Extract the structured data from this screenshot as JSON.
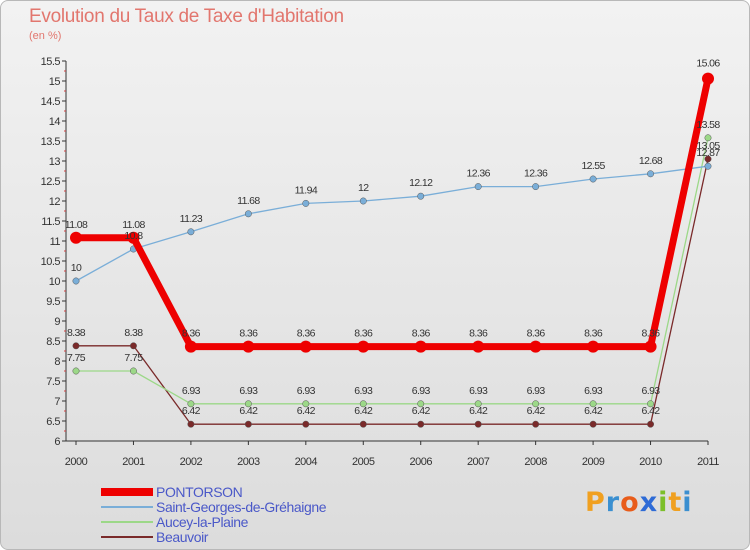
{
  "title": "Evolution du Taux de Taxe d'Habitation",
  "subtitle": "(en %)",
  "logo": {
    "text": "Proxiti",
    "letters": [
      {
        "char": "P",
        "color": "#f0a020"
      },
      {
        "char": "r",
        "color": "#3a8fd0"
      },
      {
        "char": "o",
        "color": "#e85c1a"
      },
      {
        "char": "x",
        "color": "#2e6bd6"
      },
      {
        "char": "i",
        "color": "#7cbf2a"
      },
      {
        "char": "t",
        "color": "#f0a020"
      },
      {
        "char": "i",
        "color": "#3a8fd0"
      }
    ]
  },
  "chart_data": {
    "type": "line",
    "title": "Evolution du Taux de Taxe d'Habitation",
    "ylabel": "(en %)",
    "xlabel": "",
    "x": [
      "2000",
      "2001",
      "2002",
      "2003",
      "2004",
      "2005",
      "2006",
      "2007",
      "2008",
      "2009",
      "2010",
      "2011"
    ],
    "ylim": [
      6,
      15.5
    ],
    "yticks": [
      "6",
      "6.5",
      "7",
      "7.5",
      "8",
      "8.5",
      "9",
      "9.5",
      "10",
      "10.5",
      "11",
      "11.5",
      "12",
      "12.5",
      "13",
      "13.5",
      "14",
      "14.5",
      "15",
      "15.5"
    ],
    "grid": false,
    "legend_position": "bottom-left",
    "series": [
      {
        "name": "PONTORSON",
        "color": "#ee0000",
        "values": [
          11.08,
          11.08,
          8.36,
          8.36,
          8.36,
          8.36,
          8.36,
          8.36,
          8.36,
          8.36,
          8.36,
          15.06
        ],
        "labels": [
          "11.08",
          "11.08",
          "8.36",
          "8.36",
          "8.36",
          "8.36",
          "8.36",
          "8.36",
          "8.36",
          "8.36",
          "8.36",
          "15.06"
        ]
      },
      {
        "name": "Saint-Georges-de-Gréhaigne",
        "color": "#7aaed8",
        "values": [
          10,
          10.8,
          11.23,
          11.68,
          11.94,
          12,
          12.12,
          12.36,
          12.36,
          12.55,
          12.68,
          12.87
        ],
        "labels": [
          "10",
          "10.8",
          "11.23",
          "11.68",
          "11.94",
          "12",
          "12.12",
          "12.36",
          "12.36",
          "12.55",
          "12.68",
          "12.87"
        ]
      },
      {
        "name": "Aucey-la-Plaine",
        "color": "#9cd888",
        "values": [
          7.75,
          7.75,
          6.93,
          6.93,
          6.93,
          6.93,
          6.93,
          6.93,
          6.93,
          6.93,
          6.93,
          13.58
        ],
        "labels": [
          "7.75",
          "7.75",
          "6.93",
          "6.93",
          "6.93",
          "6.93",
          "6.93",
          "6.93",
          "6.93",
          "6.93",
          "6.93",
          "13.58"
        ]
      },
      {
        "name": "Beauvoir",
        "color": "#7a2a2a",
        "values": [
          8.38,
          8.38,
          6.42,
          6.42,
          6.42,
          6.42,
          6.42,
          6.42,
          6.42,
          6.42,
          6.42,
          13.05
        ],
        "labels": [
          "8.38",
          "8.38",
          "6.42",
          "6.42",
          "6.42",
          "6.42",
          "6.42",
          "6.42",
          "6.42",
          "6.42",
          "6.42",
          "13.05"
        ]
      }
    ]
  }
}
